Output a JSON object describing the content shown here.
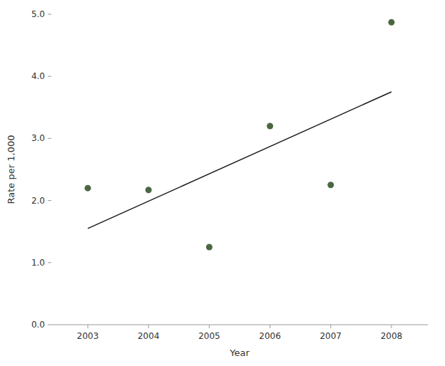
{
  "chart_data": {
    "type": "scatter",
    "xlabel": "Year",
    "ylabel": "Rate per 1,000",
    "series": [
      {
        "type": "line",
        "color": "#1a1a1a",
        "x": [
          2003,
          2008
        ],
        "values": [
          1.55,
          3.75
        ]
      },
      {
        "type": "scatter",
        "color": "#4a6741",
        "x": [
          2003,
          2004,
          2005,
          2006,
          2007,
          2008
        ],
        "values": [
          2.2,
          2.17,
          1.25,
          3.2,
          2.25,
          4.87
        ]
      }
    ],
    "xlim": [
      2002.4,
      2008.6
    ],
    "ylim": [
      0.0,
      5.0
    ],
    "xticks": [
      2003,
      2004,
      2005,
      2006,
      2007,
      2008
    ],
    "yticks": [
      {
        "value": 0.0,
        "label": "0.0"
      },
      {
        "value": 1.0,
        "label": "1.0"
      },
      {
        "value": 2.0,
        "label": "2.0"
      },
      {
        "value": 3.0,
        "label": "3.0"
      },
      {
        "value": 4.0,
        "label": "4.0"
      },
      {
        "value": 5.0,
        "label": "5.0"
      }
    ],
    "grid": false
  }
}
